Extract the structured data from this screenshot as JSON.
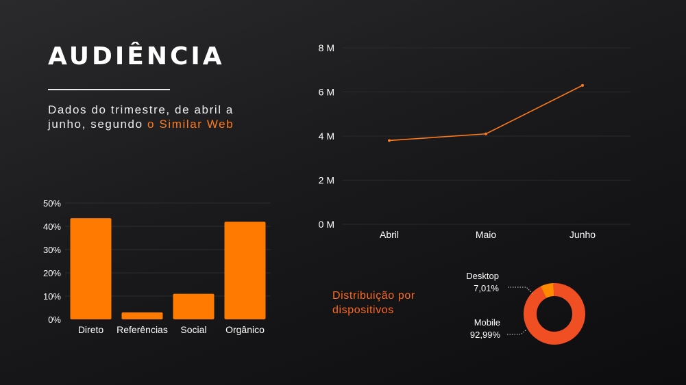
{
  "page": {
    "title": "AUDIÊNCIA",
    "subtitle_prefix": "Dados do trimestre, de abril a junho, segundo ",
    "subtitle_link": "o Similar Web",
    "device_title": "Distribuição por dispositivos"
  },
  "colors": {
    "accent": "#ff7a00",
    "line": "#ff7a1a",
    "donut_mobile": "#f04e23",
    "donut_desktop": "#ff8a00"
  },
  "chart_data": [
    {
      "type": "bar",
      "categories": [
        "Direto",
        "Referências",
        "Social",
        "Orgânico"
      ],
      "values": [
        43.5,
        3,
        11,
        42
      ],
      "ylim": [
        0,
        50
      ],
      "yticks": [
        "0%",
        "10%",
        "20%",
        "30%",
        "40%",
        "50%"
      ],
      "grid": true
    },
    {
      "type": "line",
      "categories": [
        "Abril",
        "Maio",
        "Junho"
      ],
      "values": [
        3.8,
        4.1,
        6.3
      ],
      "ylim": [
        0,
        8
      ],
      "yticks": [
        "0 M",
        "2 M",
        "4 M",
        "6 M",
        "8 M"
      ],
      "grid": true
    },
    {
      "type": "pie",
      "donut": true,
      "slices": [
        {
          "label": "Desktop",
          "value": 7.01,
          "text": "7,01%"
        },
        {
          "label": "Mobile",
          "value": 92.99,
          "text": "92,99%"
        }
      ]
    }
  ]
}
